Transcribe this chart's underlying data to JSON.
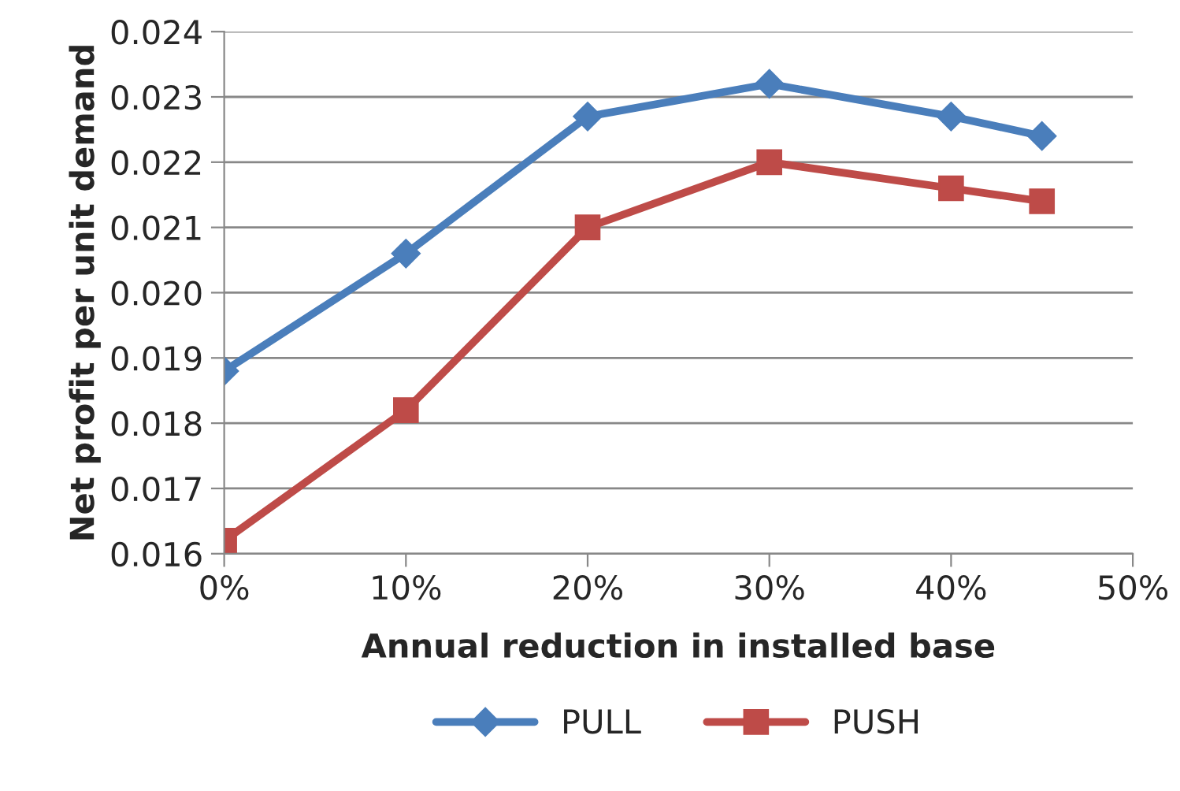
{
  "chart_data": {
    "type": "line",
    "xlabel": "Annual reduction in installed base",
    "ylabel": "Net profit per unit demand",
    "x": [
      0,
      10,
      20,
      30,
      40,
      45
    ],
    "series": [
      {
        "name": "PULL",
        "color": "#4a7ebb",
        "marker": "diamond",
        "values": [
          0.0188,
          0.0206,
          0.0227,
          0.0232,
          0.0227,
          0.0224
        ]
      },
      {
        "name": "PUSH",
        "color": "#be4b48",
        "marker": "square",
        "values": [
          0.0162,
          0.0182,
          0.021,
          0.022,
          0.0216,
          0.0214
        ]
      }
    ],
    "xlim": [
      0,
      50
    ],
    "xticks": [
      {
        "value": 0,
        "label": "0%"
      },
      {
        "value": 10,
        "label": "10%"
      },
      {
        "value": 20,
        "label": "20%"
      },
      {
        "value": 30,
        "label": "30%"
      },
      {
        "value": 40,
        "label": "40%"
      },
      {
        "value": 50,
        "label": "50%"
      }
    ],
    "ylim": [
      0.016,
      0.024
    ],
    "yticks": [
      {
        "value": 0.016,
        "label": "0.016"
      },
      {
        "value": 0.017,
        "label": "0.017"
      },
      {
        "value": 0.018,
        "label": "0.018"
      },
      {
        "value": 0.019,
        "label": "0.019"
      },
      {
        "value": 0.02,
        "label": "0.020"
      },
      {
        "value": 0.021,
        "label": "0.021"
      },
      {
        "value": 0.022,
        "label": "0.022"
      },
      {
        "value": 0.023,
        "label": "0.023"
      },
      {
        "value": 0.024,
        "label": "0.024"
      }
    ],
    "grid": "y",
    "legend": "bottom",
    "line_style": "solid"
  }
}
